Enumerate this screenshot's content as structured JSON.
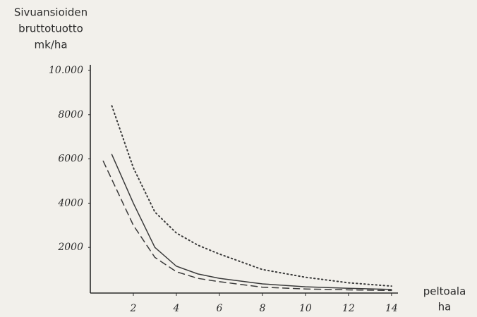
{
  "chart_data": {
    "type": "line",
    "y_label": [
      "Sivuansioiden",
      "bruttotuotto",
      "mk/ha"
    ],
    "x_label": [
      "peltoala",
      "ha"
    ],
    "xlim": [
      0,
      14.3
    ],
    "xticks": [
      2,
      4,
      6,
      8,
      10,
      12,
      14
    ],
    "ylim": [
      0,
      10000
    ],
    "yticks": [
      2000,
      4000,
      6000,
      8000,
      {
        "value": 10000,
        "label": "10.000"
      }
    ],
    "series": [
      {
        "color": "#3a3a3a",
        "style": "dotted",
        "x": [
          1,
          2,
          3,
          4,
          5,
          6,
          8,
          10,
          12,
          14
        ],
        "values": [
          8400,
          5600,
          3600,
          2650,
          2100,
          1700,
          1000,
          650,
          400,
          250
        ]
      },
      {
        "color": "#3a3a3a",
        "style": "solid",
        "x": [
          1,
          2,
          3,
          4,
          5,
          6,
          8,
          10,
          12,
          14
        ],
        "values": [
          6200,
          4000,
          2000,
          1150,
          800,
          600,
          350,
          220,
          150,
          100
        ]
      },
      {
        "color": "#3a3a3a",
        "style": "dashed",
        "x": [
          0.6,
          2,
          3,
          4,
          5,
          6,
          8,
          10,
          12,
          14
        ],
        "values": [
          5900,
          3000,
          1550,
          900,
          600,
          450,
          200,
          120,
          80,
          50
        ]
      }
    ]
  }
}
